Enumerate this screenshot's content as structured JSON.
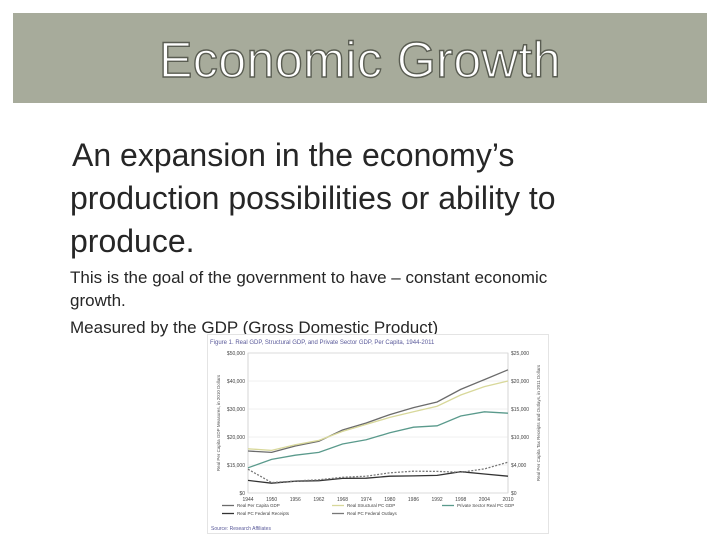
{
  "slide": {
    "title": "Economic Growth",
    "main_bullet_line1": "An expansion in the economy’s",
    "main_bullet_line2": "production possibilities or ability to",
    "main_bullet_line3": "produce.",
    "sub_bullet_1_line1": "This is the goal of the government to have – constant economic",
    "sub_bullet_1_line2": "growth.",
    "sub_bullet_2": "Measured by the GDP (Gross Domestic Product)",
    "bullet_icon": "bullet-arrow-icon",
    "colors": {
      "title_bar": "#a7ab9b",
      "text": "#262626",
      "bullet": "#8e9181"
    }
  },
  "chart_data": {
    "type": "line",
    "title": "Figure 1. Real GDP, Structural GDP, and Private Sector GDP, Per Capita, 1944-2011",
    "ylabel": "Real Per Capita GDP Measures, in 2010 Dollars",
    "y2label": "Real Per Capita Tax Receipts and Outlays, in 2011 Dollars",
    "x": [
      1944,
      1950,
      1956,
      1962,
      1968,
      1974,
      1980,
      1986,
      1992,
      1998,
      2004,
      2010
    ],
    "x_ticks": [
      "1944",
      "1950",
      "1956",
      "1962",
      "1968",
      "1974",
      "1980",
      "1986",
      "1992",
      "1998",
      "2004",
      "2010"
    ],
    "y_ticks": [
      "$0",
      "$15,000",
      "$20,000",
      "$30,000",
      "$40,000",
      "$50,000"
    ],
    "y2_ticks": [
      "$0",
      "$4,000",
      "$10,000",
      "$15,000",
      "$20,000",
      "$25,000"
    ],
    "ylim": [
      0,
      50000
    ],
    "series": [
      {
        "name": "Real Per Capita GDP",
        "color": "#6b6b6b",
        "values": [
          15000,
          14500,
          16800,
          18500,
          22500,
          25000,
          28000,
          30500,
          32500,
          37000,
          40500,
          44000
        ]
      },
      {
        "name": "Real Structural PC GDP",
        "color": "#d8d89a",
        "values": [
          15800,
          15200,
          17200,
          18800,
          22000,
          24500,
          27000,
          29000,
          31000,
          35000,
          38000,
          40000
        ]
      },
      {
        "name": "Private Sector Real PC GDP",
        "color": "#5a9a8c",
        "values": [
          9000,
          12000,
          13500,
          14500,
          17500,
          19000,
          21500,
          23500,
          24000,
          27500,
          29000,
          28500
        ]
      },
      {
        "name": "Real PC Federal Receipts",
        "color": "#333333",
        "values": [
          4500,
          3500,
          4200,
          4400,
          5200,
          5300,
          6000,
          6100,
          6300,
          7600,
          6800,
          6000
        ]
      },
      {
        "name": "Real PC Federal Outlays",
        "color": "#777777",
        "values": [
          8500,
          3700,
          4300,
          4700,
          5600,
          6000,
          7200,
          7800,
          7700,
          7400,
          8600,
          11000
        ]
      }
    ],
    "source": "Source: Research Affiliates"
  }
}
